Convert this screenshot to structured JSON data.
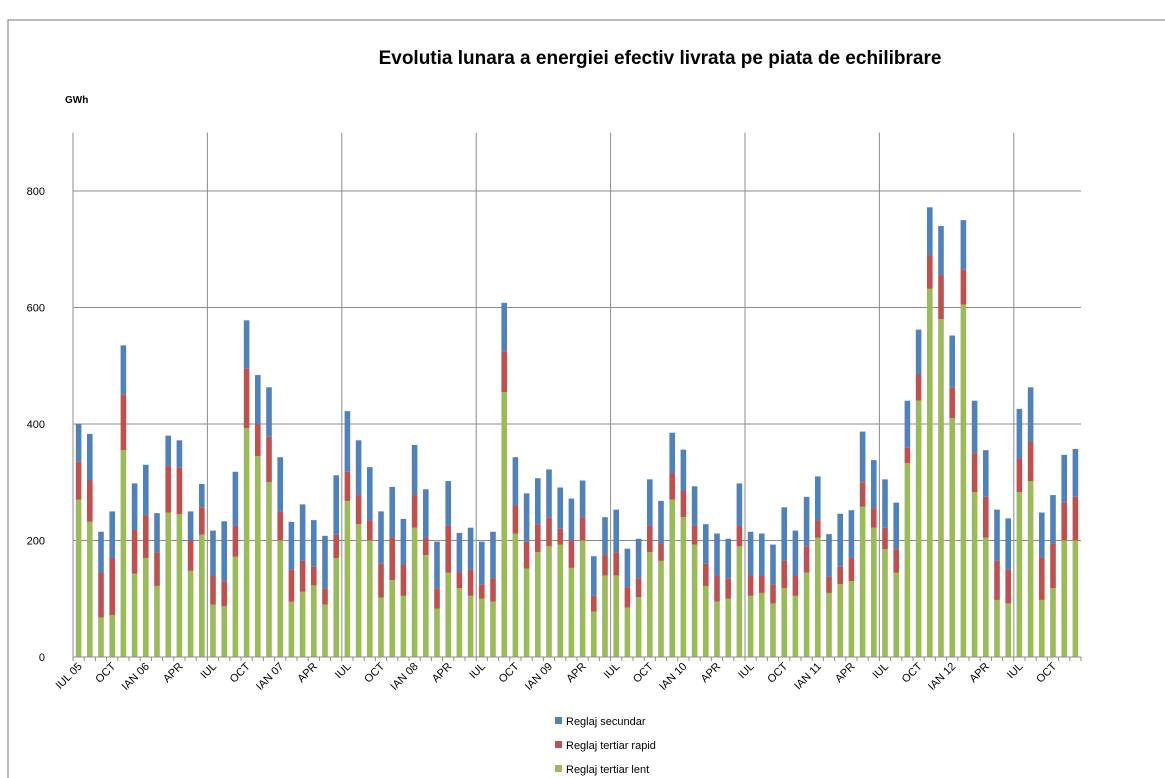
{
  "chart_data": {
    "type": "stacked_bar",
    "title": "Evolutia lunara a energiei efectiv livrata pe piata de echilibrare",
    "y_label": "GWh",
    "categories": [
      "IUL 05",
      null,
      null,
      "OCT",
      null,
      null,
      "IAN 06",
      null,
      null,
      "APR",
      null,
      null,
      "IUL",
      null,
      null,
      "OCT",
      null,
      null,
      "IAN 07",
      null,
      null,
      "APR",
      null,
      null,
      "IUL",
      null,
      null,
      "OCT",
      null,
      null,
      "IAN 08",
      null,
      null,
      "APR",
      null,
      null,
      "IUL",
      null,
      null,
      "OCT",
      null,
      null,
      "IAN 09",
      null,
      null,
      "APR",
      null,
      null,
      "IUL",
      null,
      null,
      "OCT",
      null,
      null,
      "IAN 10",
      null,
      null,
      "APR",
      null,
      null,
      "IUL",
      null,
      null,
      "OCT",
      null,
      null,
      "IAN 11",
      null,
      null,
      "APR",
      null,
      null,
      "IUL",
      null,
      null,
      "OCT",
      null,
      null,
      "IAN 12",
      null,
      null,
      "APR",
      null,
      null,
      "IUL",
      null,
      null,
      "OCT",
      null,
      null
    ],
    "series": [
      {
        "name": "Reglaj tertiar lent",
        "color": "#9bbb59",
        "values": [
          270,
          232,
          68,
          72,
          355,
          143,
          170,
          122,
          248,
          245,
          148,
          210,
          90,
          87,
          172,
          393,
          345,
          300,
          200,
          95,
          112,
          123,
          90,
          170,
          268,
          228,
          200,
          102,
          132,
          105,
          222,
          175,
          83,
          145,
          118,
          105,
          100,
          95,
          455,
          212,
          152,
          180,
          190,
          193,
          153,
          200,
          78,
          140,
          140,
          85,
          103,
          180,
          165,
          270,
          240,
          193,
          122,
          95,
          100,
          190,
          105,
          110,
          92,
          118,
          105,
          145,
          205,
          110,
          125,
          130,
          258,
          222,
          185,
          145,
          333,
          440,
          632,
          580,
          410,
          605,
          283,
          205,
          98,
          92,
          283,
          302,
          98,
          118,
          200,
          200
        ]
      },
      {
        "name": "Reglaj tertiar rapid",
        "color": "#c0504d",
        "values": [
          65,
          71,
          77,
          98,
          95,
          75,
          73,
          58,
          80,
          80,
          52,
          47,
          50,
          43,
          53,
          102,
          55,
          78,
          50,
          55,
          53,
          32,
          28,
          40,
          50,
          50,
          35,
          58,
          73,
          53,
          56,
          30,
          35,
          80,
          27,
          45,
          25,
          40,
          70,
          48,
          46,
          48,
          50,
          27,
          47,
          40,
          27,
          35,
          40,
          35,
          32,
          45,
          30,
          45,
          45,
          32,
          38,
          45,
          35,
          35,
          35,
          30,
          33,
          47,
          35,
          45,
          30,
          28,
          30,
          40,
          42,
          33,
          37,
          40,
          27,
          45,
          58,
          75,
          52,
          60,
          67,
          70,
          67,
          58,
          57,
          68,
          72,
          77,
          65,
          75
        ]
      },
      {
        "name": "Reglaj secundar",
        "color": "#4f81bd",
        "values": [
          65,
          80,
          70,
          80,
          85,
          80,
          87,
          67,
          52,
          47,
          50,
          40,
          77,
          103,
          93,
          83,
          84,
          85,
          93,
          82,
          97,
          80,
          90,
          102,
          104,
          94,
          91,
          90,
          87,
          79,
          86,
          83,
          80,
          77,
          68,
          72,
          73,
          80,
          83,
          83,
          83,
          79,
          82,
          71,
          72,
          63,
          68,
          65,
          73,
          66,
          68,
          80,
          73,
          70,
          71,
          68,
          68,
          72,
          68,
          73,
          75,
          72,
          68,
          92,
          77,
          85,
          75,
          73,
          91,
          82,
          87,
          83,
          83,
          80,
          80,
          77,
          82,
          85,
          90,
          85,
          90,
          80,
          88,
          88,
          86,
          93,
          78,
          83,
          82,
          82
        ]
      }
    ],
    "ylim": [
      0,
      900
    ],
    "yticks": [
      0,
      200,
      400,
      600,
      800
    ],
    "grid": true
  }
}
